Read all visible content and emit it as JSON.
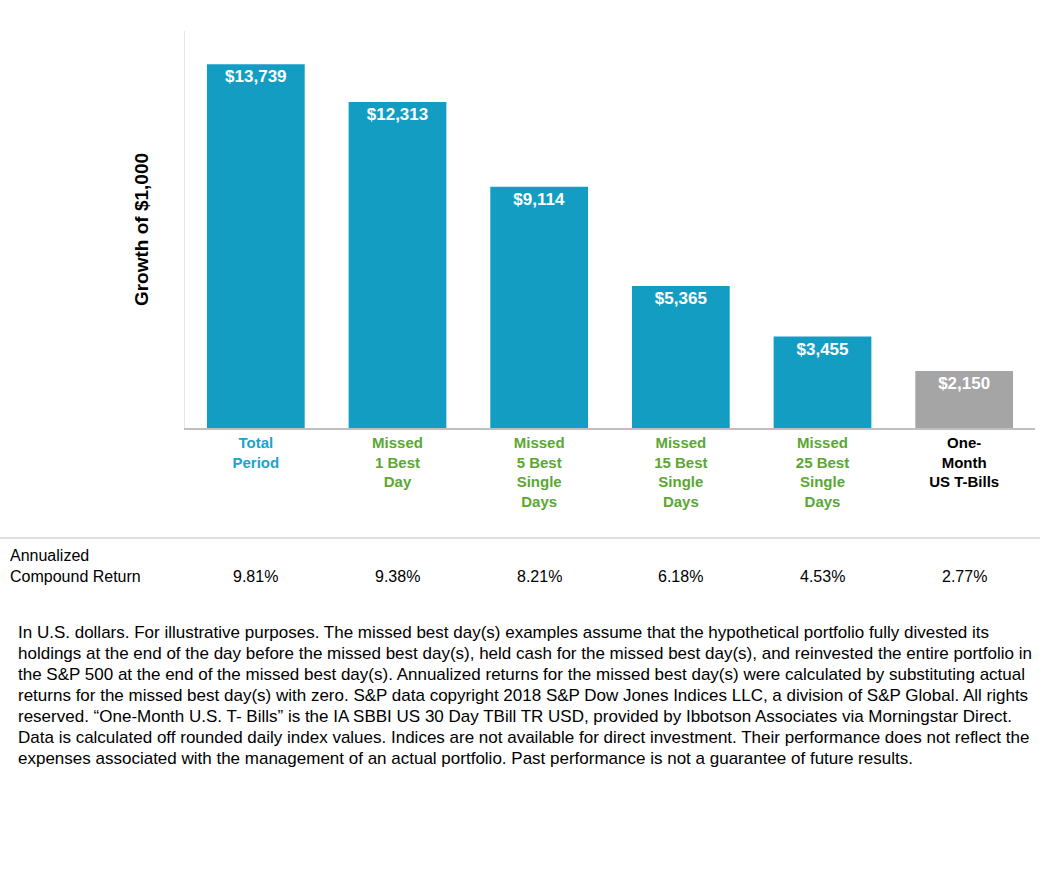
{
  "chart_data": {
    "type": "bar",
    "ylabel": "Growth of $1,000",
    "categories": [
      "Total\nPeriod",
      "Missed\n1 Best\nDay",
      "Missed\n5 Best\nSingle\nDays",
      "Missed\n15 Best\nSingle\nDays",
      "Missed\n25 Best\nSingle\nDays",
      "One-\nMonth\nUS T-Bills"
    ],
    "values": [
      13739,
      12313,
      9114,
      5365,
      3455,
      2150
    ],
    "value_labels": [
      "$13,739",
      "$12,313",
      "$9,114",
      "$5,365",
      "$3,455",
      "$2,150"
    ],
    "colors": [
      "#149dc3",
      "#149dc3",
      "#149dc3",
      "#149dc3",
      "#149dc3",
      "#a5a5a5"
    ],
    "data_labels": true,
    "tick_labels": "x",
    "ylim": [
      0,
      15000
    ],
    "yticks": [],
    "grid": false,
    "annualized_compound_return": {
      "label": "Annualized\nCompound Return",
      "values": [
        9.81,
        9.38,
        8.21,
        6.18,
        4.53,
        2.77
      ],
      "value_labels": [
        "9.81%",
        "9.38%",
        "8.21%",
        "6.18%",
        "4.53%",
        "2.77%"
      ]
    }
  },
  "footnote": "In U.S. dollars. For illustrative purposes. The missed best day(s) examples assume that the hypothetical portfolio fully divested its holdings at the end of the day before the missed best day(s), held cash for the missed best day(s), and reinvested the entire portfolio in the S&P 500 at the end of the missed best day(s). Annualized returns for the missed best day(s) were calculated by substituting actual returns for the missed best day(s) with zero. S&P data copyright 2018 S&P Dow Jones Indices LLC, a division of S&P Global. All rights reserved. “One-Month U.S. T- Bills” is the IA SBBI US 30 Day TBill TR USD, provided by Ibbotson Associates via Morningstar Direct. Data is calculated off rounded daily index values. Indices are not available for direct investment. Their performance does not reflect the expenses associated with the management of an actual portfolio. Past performance is not a guarantee of future results."
}
